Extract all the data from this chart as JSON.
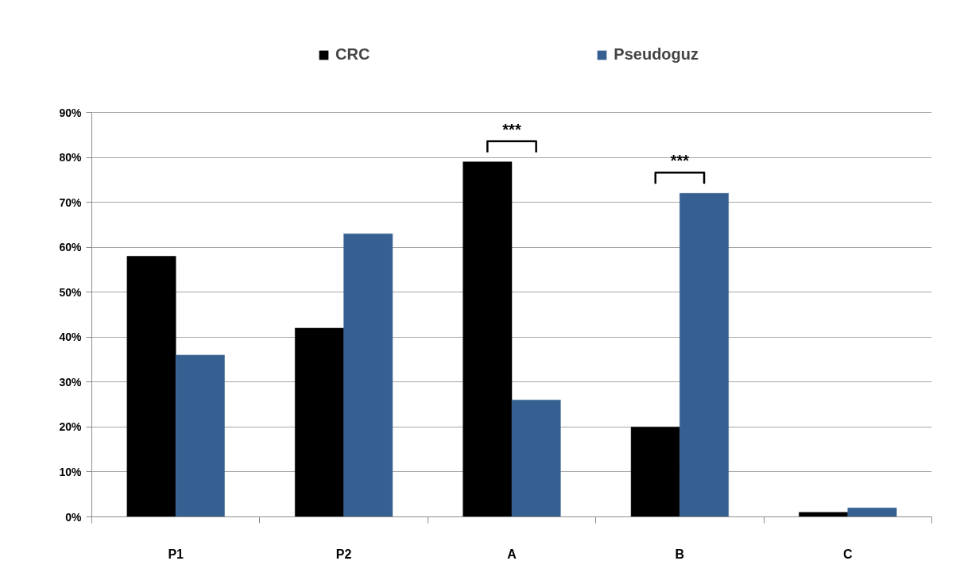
{
  "chart_data": {
    "type": "bar",
    "categories": [
      "P1",
      "P2",
      "A",
      "B",
      "C"
    ],
    "series": [
      {
        "name": "CRC",
        "color": "#000000",
        "values": [
          58,
          42,
          79,
          20,
          1
        ]
      },
      {
        "name": "Pseudoguz",
        "color": "#376092",
        "values": [
          36,
          63,
          26,
          72,
          2
        ]
      }
    ],
    "ylim": [
      0,
      90
    ],
    "yticks": [
      {
        "value": 0,
        "label": "0%"
      },
      {
        "value": 10,
        "label": "10%"
      },
      {
        "value": 20,
        "label": "20%"
      },
      {
        "value": 30,
        "label": "30%"
      },
      {
        "value": 40,
        "label": "40%"
      },
      {
        "value": 50,
        "label": "50%"
      },
      {
        "value": 60,
        "label": "60%"
      },
      {
        "value": 70,
        "label": "70%"
      },
      {
        "value": 80,
        "label": "80%"
      },
      {
        "value": 90,
        "label": "90%"
      }
    ],
    "grid": "y",
    "legend": "top",
    "annotations": [
      {
        "text": "***",
        "x": "A",
        "y": 79
      },
      {
        "text": "***",
        "x": "B",
        "y": 72
      }
    ]
  }
}
